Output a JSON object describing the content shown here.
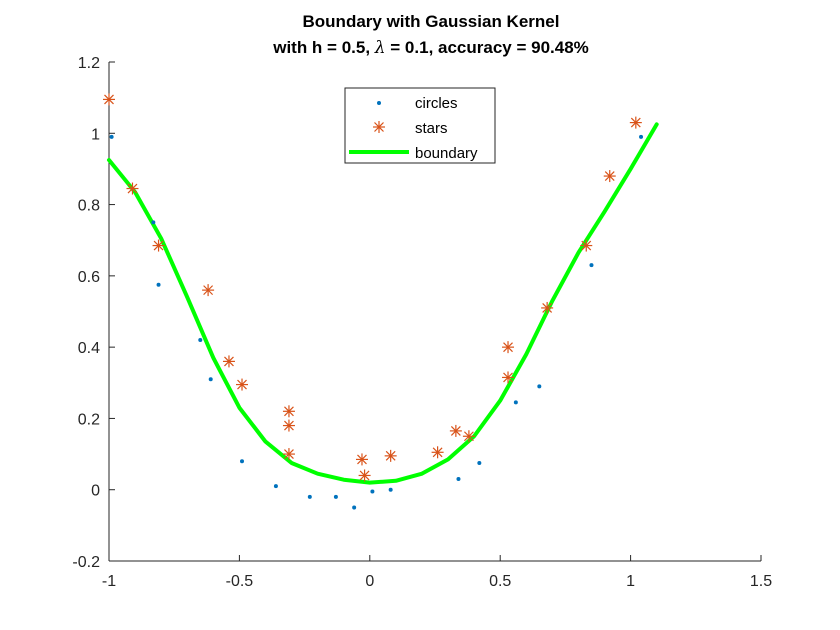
{
  "chart_data": {
    "type": "scatter",
    "title_line1": "Boundary with Gaussian Kernel",
    "title_line2_prefix": "with h = 0.5, ",
    "title_line2_lambda": "λ",
    "title_line2_suffix": " = 0.1, accuracy = 90.48%",
    "xlabel": "",
    "ylabel": "",
    "xlim": [
      -1,
      1.5
    ],
    "ylim": [
      -0.2,
      1.2
    ],
    "xticks": [
      -1,
      -0.5,
      0,
      0.5,
      1,
      1.5
    ],
    "yticks": [
      -0.2,
      0,
      0.2,
      0.4,
      0.6,
      0.8,
      1,
      1.2
    ],
    "xtick_labels": [
      "-1",
      "-0.5",
      "0",
      "0.5",
      "1",
      "1.5"
    ],
    "ytick_labels": [
      "-0.2",
      "0",
      "0.2",
      "0.4",
      "0.6",
      "0.8",
      "1",
      "1.2"
    ],
    "grid": false,
    "legend_position": "top-center",
    "series": [
      {
        "name": "circles",
        "marker": "dot",
        "color": "#0072BD",
        "points": [
          [
            -0.99,
            0.99
          ],
          [
            -0.83,
            0.75
          ],
          [
            -0.81,
            0.575
          ],
          [
            -0.65,
            0.42
          ],
          [
            -0.61,
            0.31
          ],
          [
            -0.49,
            0.08
          ],
          [
            -0.36,
            0.01
          ],
          [
            -0.23,
            -0.02
          ],
          [
            -0.13,
            -0.02
          ],
          [
            -0.06,
            -0.05
          ],
          [
            0.01,
            -0.005
          ],
          [
            0.08,
            0.0
          ],
          [
            0.34,
            0.03
          ],
          [
            0.42,
            0.075
          ],
          [
            0.56,
            0.245
          ],
          [
            0.65,
            0.29
          ],
          [
            0.85,
            0.63
          ],
          [
            1.04,
            0.99
          ]
        ]
      },
      {
        "name": "stars",
        "marker": "asterisk",
        "color": "#D95319",
        "points": [
          [
            -1.0,
            1.095
          ],
          [
            -0.91,
            0.845
          ],
          [
            -0.81,
            0.685
          ],
          [
            -0.62,
            0.56
          ],
          [
            -0.54,
            0.36
          ],
          [
            -0.49,
            0.295
          ],
          [
            -0.31,
            0.22
          ],
          [
            -0.31,
            0.18
          ],
          [
            -0.31,
            0.1
          ],
          [
            -0.03,
            0.085
          ],
          [
            -0.02,
            0.04
          ],
          [
            0.08,
            0.095
          ],
          [
            0.26,
            0.105
          ],
          [
            0.33,
            0.165
          ],
          [
            0.38,
            0.15
          ],
          [
            0.53,
            0.4
          ],
          [
            0.53,
            0.315
          ],
          [
            0.68,
            0.51
          ],
          [
            0.83,
            0.685
          ],
          [
            0.92,
            0.88
          ],
          [
            1.02,
            1.03
          ]
        ]
      },
      {
        "name": "boundary",
        "marker": "line",
        "color": "#00FF00",
        "points": [
          [
            -1.0,
            0.925
          ],
          [
            -0.9,
            0.835
          ],
          [
            -0.8,
            0.705
          ],
          [
            -0.7,
            0.54
          ],
          [
            -0.6,
            0.37
          ],
          [
            -0.5,
            0.23
          ],
          [
            -0.4,
            0.135
          ],
          [
            -0.3,
            0.075
          ],
          [
            -0.2,
            0.045
          ],
          [
            -0.1,
            0.028
          ],
          [
            0.0,
            0.02
          ],
          [
            0.1,
            0.025
          ],
          [
            0.2,
            0.045
          ],
          [
            0.3,
            0.085
          ],
          [
            0.4,
            0.15
          ],
          [
            0.5,
            0.25
          ],
          [
            0.6,
            0.38
          ],
          [
            0.7,
            0.53
          ],
          [
            0.8,
            0.665
          ],
          [
            0.9,
            0.78
          ],
          [
            1.0,
            0.9
          ],
          [
            1.1,
            1.025
          ]
        ]
      }
    ]
  }
}
